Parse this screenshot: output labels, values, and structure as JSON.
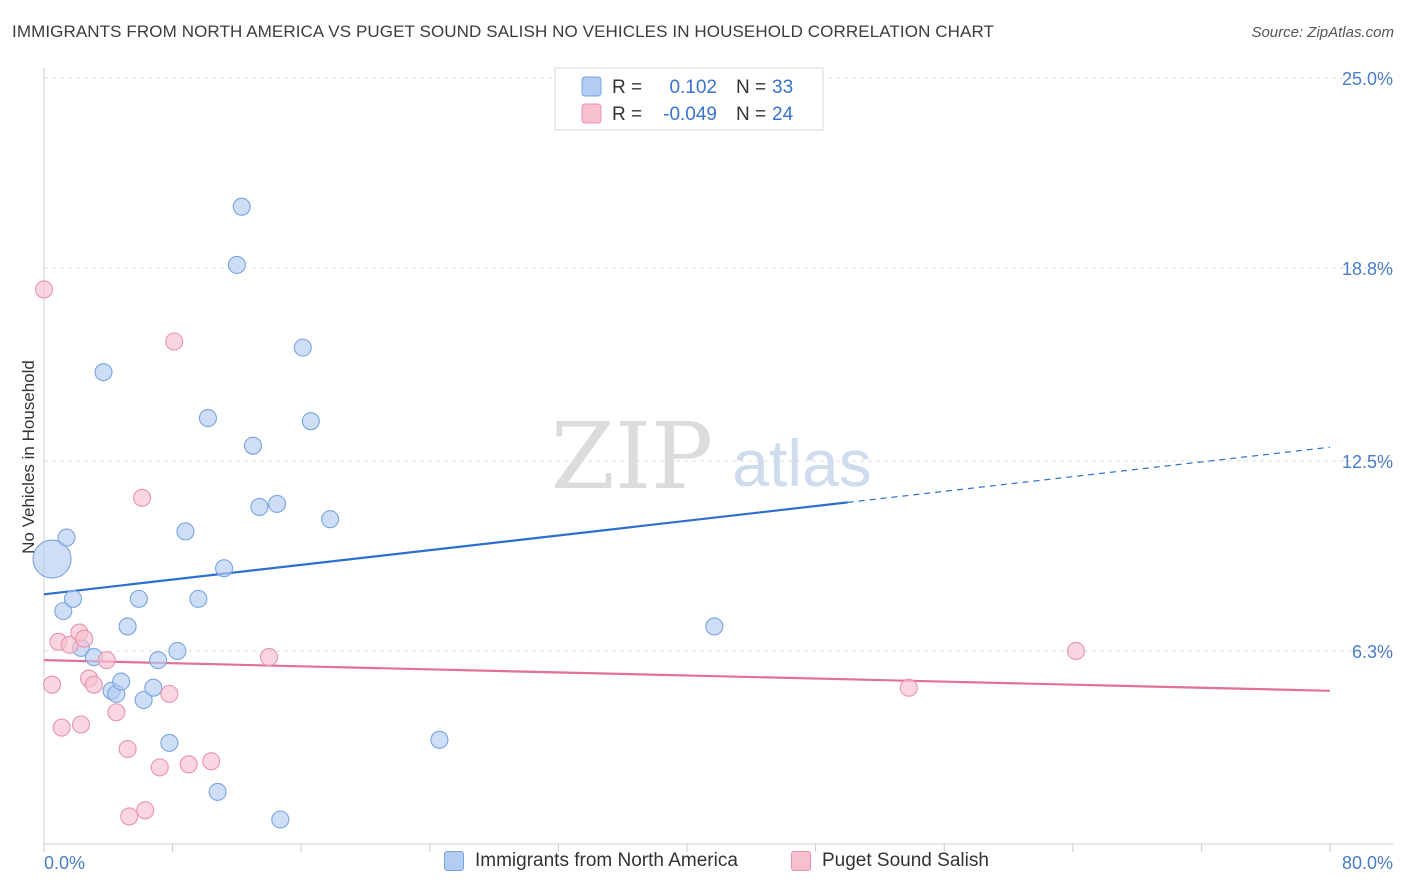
{
  "title": "IMMIGRANTS FROM NORTH AMERICA VS PUGET SOUND SALISH NO VEHICLES IN HOUSEHOLD CORRELATION CHART",
  "source": "Source: ZipAtlas.com",
  "watermark": {
    "zip": "ZIP",
    "atlas": "atlas"
  },
  "colors": {
    "blue_fill": "#b3cdf2",
    "blue_stroke": "#7aa4de",
    "blue_line": "#2d6fce",
    "pink_fill": "#f7c0cf",
    "pink_stroke": "#ea93ac",
    "pink_line": "#e2709a",
    "grid": "#dddddd",
    "axis_text": "#4a7cc9",
    "legend_value": "#3a72cf"
  },
  "legend_top": [
    {
      "r_label": "R =",
      "r_value": "0.102",
      "n_label": "N =",
      "n_value": "33",
      "series": "blue"
    },
    {
      "r_label": "R =",
      "r_value": "-0.049",
      "n_label": "N =",
      "n_value": "24",
      "series": "pink"
    }
  ],
  "chart_data": {
    "type": "scatter",
    "title": "IMMIGRANTS FROM NORTH AMERICA VS PUGET SOUND SALISH NO VEHICLES IN HOUSEHOLD CORRELATION CHART",
    "xlabel": "",
    "ylabel": "No Vehicles in Household",
    "xlim": [
      0,
      80
    ],
    "ylim": [
      0,
      25
    ],
    "x_tick_labels": [
      "0.0%",
      "80.0%"
    ],
    "y_ticks": [
      6.3,
      12.5,
      18.8,
      25.0
    ],
    "y_tick_labels": [
      "6.3%",
      "12.5%",
      "18.8%",
      "25.0%"
    ],
    "legend_position": "top-center",
    "series": [
      {
        "name": "Immigrants from North America",
        "color": "blue",
        "trend": {
          "x0": 0,
          "y0": 8.15,
          "x1": 50,
          "y1": 11.15,
          "dash_x1": 80,
          "dash_y1": 12.95
        },
        "points": [
          {
            "x": 0.5,
            "y": 9.3,
            "big": true
          },
          {
            "x": 1.2,
            "y": 7.6
          },
          {
            "x": 1.4,
            "y": 10.0
          },
          {
            "x": 1.8,
            "y": 8.0
          },
          {
            "x": 2.3,
            "y": 6.4
          },
          {
            "x": 3.1,
            "y": 6.1
          },
          {
            "x": 3.7,
            "y": 15.4
          },
          {
            "x": 4.2,
            "y": 5.0
          },
          {
            "x": 4.5,
            "y": 4.9
          },
          {
            "x": 4.8,
            "y": 5.3
          },
          {
            "x": 5.2,
            "y": 7.1
          },
          {
            "x": 5.9,
            "y": 8.0
          },
          {
            "x": 6.2,
            "y": 4.7
          },
          {
            "x": 6.8,
            "y": 5.1
          },
          {
            "x": 7.1,
            "y": 6.0
          },
          {
            "x": 7.8,
            "y": 3.3
          },
          {
            "x": 8.3,
            "y": 6.3
          },
          {
            "x": 8.8,
            "y": 10.2
          },
          {
            "x": 9.6,
            "y": 8.0
          },
          {
            "x": 10.2,
            "y": 13.9
          },
          {
            "x": 10.8,
            "y": 1.7
          },
          {
            "x": 11.2,
            "y": 9.0
          },
          {
            "x": 12.0,
            "y": 18.9
          },
          {
            "x": 12.3,
            "y": 20.8
          },
          {
            "x": 13.0,
            "y": 13.0
          },
          {
            "x": 13.4,
            "y": 11.0
          },
          {
            "x": 14.5,
            "y": 11.1
          },
          {
            "x": 14.7,
            "y": 0.8
          },
          {
            "x": 16.1,
            "y": 16.2
          },
          {
            "x": 16.6,
            "y": 13.8
          },
          {
            "x": 17.8,
            "y": 10.6
          },
          {
            "x": 24.6,
            "y": 3.4
          },
          {
            "x": 41.7,
            "y": 7.1
          }
        ]
      },
      {
        "name": "Puget Sound Salish",
        "color": "pink",
        "trend": {
          "x0": 0,
          "y0": 6.0,
          "x1": 80,
          "y1": 5.0
        },
        "points": [
          {
            "x": 0.0,
            "y": 18.1
          },
          {
            "x": 0.5,
            "y": 5.2
          },
          {
            "x": 0.9,
            "y": 6.6
          },
          {
            "x": 1.1,
            "y": 3.8
          },
          {
            "x": 1.6,
            "y": 6.5
          },
          {
            "x": 2.2,
            "y": 6.9
          },
          {
            "x": 2.3,
            "y": 3.9
          },
          {
            "x": 2.5,
            "y": 6.7
          },
          {
            "x": 2.8,
            "y": 5.4
          },
          {
            "x": 3.1,
            "y": 5.2
          },
          {
            "x": 3.9,
            "y": 6.0
          },
          {
            "x": 4.5,
            "y": 4.3
          },
          {
            "x": 5.2,
            "y": 3.1
          },
          {
            "x": 5.3,
            "y": 0.9
          },
          {
            "x": 6.1,
            "y": 11.3
          },
          {
            "x": 6.3,
            "y": 1.1
          },
          {
            "x": 7.2,
            "y": 2.5
          },
          {
            "x": 7.8,
            "y": 4.9
          },
          {
            "x": 8.1,
            "y": 16.4
          },
          {
            "x": 9.0,
            "y": 2.6
          },
          {
            "x": 10.4,
            "y": 2.7
          },
          {
            "x": 14.0,
            "y": 6.1
          },
          {
            "x": 53.8,
            "y": 5.1
          },
          {
            "x": 64.2,
            "y": 6.3
          }
        ]
      }
    ]
  }
}
